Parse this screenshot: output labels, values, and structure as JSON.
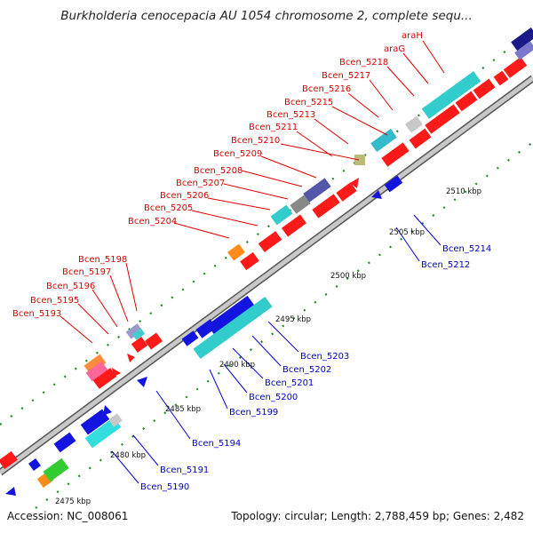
{
  "title": "Burkholderia cenocepacia AU 1054 chromosome 2, complete sequ...",
  "footer": {
    "accession": "Accession: NC_008061",
    "summary": "Topology: circular; Length: 2,788,459 bp; Genes: 2,482"
  },
  "kbp_labels": [
    "2475 kbp",
    "2480 kbp",
    "2485 kbp",
    "2490 kbp",
    "2495 kbp",
    "2500 kbp",
    "2505 kbp",
    "2510 kbp"
  ],
  "labels_top": [
    "araH",
    "araG",
    "Bcen_5218",
    "Bcen_5217",
    "Bcen_5216",
    "Bcen_5215",
    "Bcen_5213",
    "Bcen_5211",
    "Bcen_5210",
    "Bcen_5209",
    "Bcen_5208",
    "Bcen_5207",
    "Bcen_5206",
    "Bcen_5205",
    "Bcen_5204",
    "Bcen_5198",
    "Bcen_5197",
    "Bcen_5196",
    "Bcen_5195",
    "Bcen_5193"
  ],
  "labels_bottom": [
    "Bcen_5214",
    "Bcen_5212",
    "Bcen_5203",
    "Bcen_5202",
    "Bcen_5201",
    "Bcen_5200",
    "Bcen_5199",
    "Bcen_5194",
    "Bcen_5191",
    "Bcen_5190"
  ],
  "colors": {
    "forward": "#ff1a1a",
    "reverse": "#1414e0",
    "cyan": "#33cccc",
    "backbone": "#a8a8a8",
    "tick": "#1a8a1a"
  }
}
